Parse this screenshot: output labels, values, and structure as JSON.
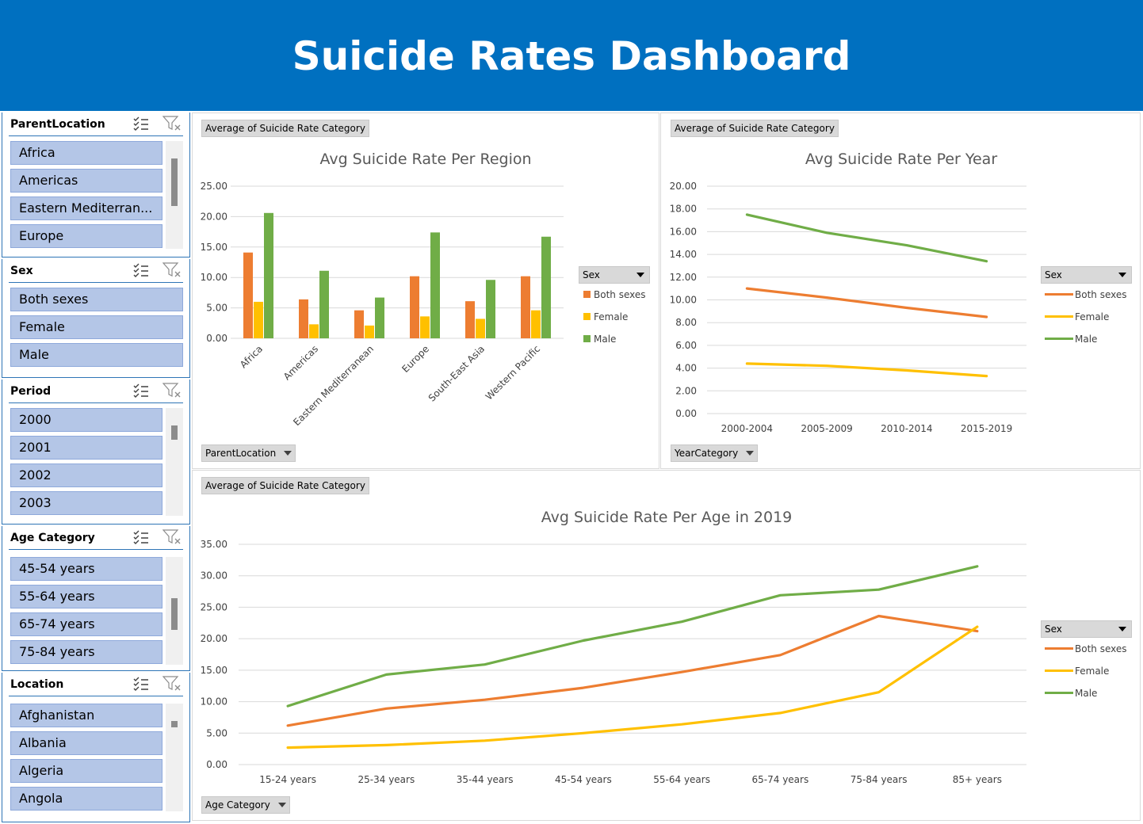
{
  "header": {
    "title": "Suicide Rates Dashboard"
  },
  "colors": {
    "header_bg": "#0070C0",
    "both_sexes": "#ED7D31",
    "female": "#FFC000",
    "male": "#70AD47",
    "slicer_item": "#B4C6E7"
  },
  "slicers": [
    {
      "title": "ParentLocation",
      "items": [
        "Africa",
        "Americas",
        "Eastern Mediterran...",
        "Europe"
      ]
    },
    {
      "title": "Sex",
      "items": [
        "Both sexes",
        "Female",
        "Male"
      ]
    },
    {
      "title": "Period",
      "items": [
        "2000",
        "2001",
        "2002",
        "2003"
      ]
    },
    {
      "title": "Age Category",
      "items": [
        "45-54 years",
        "55-64 years",
        "65-74 years",
        "75-84 years"
      ]
    },
    {
      "title": "Location",
      "items": [
        "Afghanistan",
        "Albania",
        "Algeria",
        "Angola"
      ]
    }
  ],
  "slicer_icons": {
    "multiselect": "multi-select-icon",
    "clear": "clear-filter-icon"
  },
  "charts": {
    "region": {
      "value_button": "Average of Suicide Rate Category",
      "axis_button": "ParentLocation",
      "legend_title": "Sex",
      "legend": [
        "Both sexes",
        "Female",
        "Male"
      ]
    },
    "year": {
      "value_button": "Average of Suicide Rate Category",
      "axis_button": "YearCategory",
      "legend_title": "Sex",
      "legend": [
        "Both sexes",
        "Female",
        "Male"
      ]
    },
    "age": {
      "value_button": "Average of Suicide Rate Category",
      "axis_button": "Age Category",
      "legend_title": "Sex",
      "legend": [
        "Both sexes",
        "Female",
        "Male"
      ]
    }
  },
  "chart_data": [
    {
      "type": "bar",
      "title": "Avg Suicide Rate Per Region",
      "categories": [
        "Africa",
        "Americas",
        "Eastern Mediterranean",
        "Europe",
        "South-East Asia",
        "Western Pacific"
      ],
      "series": [
        {
          "name": "Both sexes",
          "values": [
            14.1,
            6.4,
            4.6,
            10.2,
            6.1,
            10.2
          ]
        },
        {
          "name": "Female",
          "values": [
            6.0,
            2.3,
            2.1,
            3.6,
            3.2,
            4.6
          ]
        },
        {
          "name": "Male",
          "values": [
            20.6,
            11.1,
            6.7,
            17.4,
            9.6,
            16.7
          ]
        }
      ],
      "ylim": [
        0,
        25
      ],
      "yticks": [
        "0.00",
        "5.00",
        "10.00",
        "15.00",
        "20.00",
        "25.00"
      ],
      "grid": true,
      "legend_placement": "right"
    },
    {
      "type": "line",
      "title": "Avg Suicide Rate Per Year",
      "categories": [
        "2000-2004",
        "2005-2009",
        "2010-2014",
        "2015-2019"
      ],
      "series": [
        {
          "name": "Both sexes",
          "values": [
            11.0,
            10.2,
            9.3,
            8.5
          ]
        },
        {
          "name": "Female",
          "values": [
            4.4,
            4.2,
            3.8,
            3.3
          ]
        },
        {
          "name": "Male",
          "values": [
            17.5,
            15.9,
            14.8,
            13.4
          ]
        }
      ],
      "ylim": [
        0,
        20
      ],
      "yticks": [
        "0.00",
        "2.00",
        "4.00",
        "6.00",
        "8.00",
        "10.00",
        "12.00",
        "14.00",
        "16.00",
        "18.00",
        "20.00"
      ],
      "grid": true,
      "legend_placement": "right"
    },
    {
      "type": "line",
      "title": "Avg Suicide Rate Per Age in 2019",
      "categories": [
        "15-24 years",
        "25-34 years",
        "35-44 years",
        "45-54 years",
        "55-64 years",
        "65-74 years",
        "75-84 years",
        "85+ years"
      ],
      "series": [
        {
          "name": "Both sexes",
          "values": [
            6.2,
            8.9,
            10.3,
            12.2,
            14.7,
            17.4,
            23.6,
            21.2
          ]
        },
        {
          "name": "Female",
          "values": [
            2.7,
            3.1,
            3.8,
            5.0,
            6.4,
            8.2,
            11.5,
            21.9
          ]
        },
        {
          "name": "Male",
          "values": [
            9.3,
            14.3,
            15.9,
            19.7,
            22.7,
            26.9,
            27.8,
            31.5
          ]
        }
      ],
      "ylim": [
        0,
        35
      ],
      "yticks": [
        "0.00",
        "5.00",
        "10.00",
        "15.00",
        "20.00",
        "25.00",
        "30.00",
        "35.00"
      ],
      "grid": true,
      "legend_placement": "right"
    }
  ]
}
